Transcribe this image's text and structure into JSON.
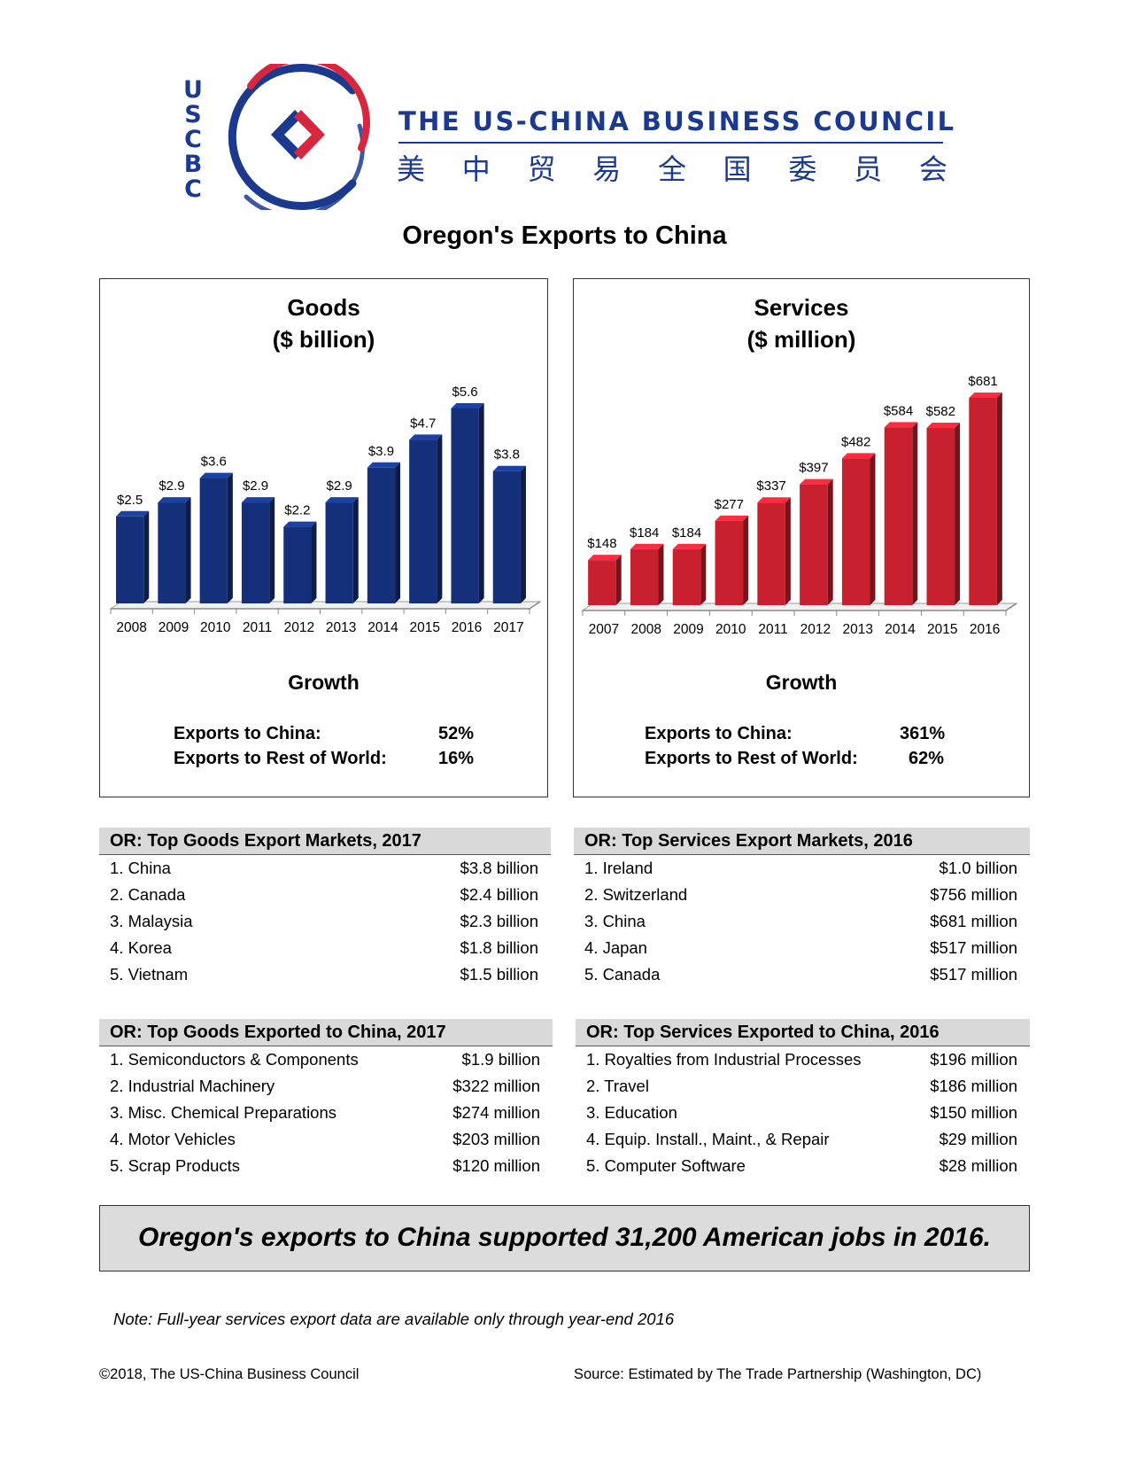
{
  "header": {
    "logo_letters": [
      "U",
      "S",
      "C",
      "B",
      "C"
    ],
    "council_name": "THE US-CHINA BUSINESS COUNCIL",
    "council_chinese": [
      "美",
      "中",
      "贸",
      "易",
      "全",
      "国",
      "委",
      "员",
      "会"
    ],
    "title": "Oregon's Exports to China"
  },
  "colors": {
    "goods_bar": "#14307a",
    "services_bar": "#c8202f",
    "brand_blue": "#1b3a8f",
    "brand_red": "#d7263d"
  },
  "goods_panel": {
    "title_line1": "Goods",
    "title_line2": "($ billion)",
    "growth_title": "Growth",
    "growth": [
      {
        "label": "Exports to China:",
        "value": "52%"
      },
      {
        "label": "Exports to Rest of World:",
        "value": "16%"
      }
    ]
  },
  "services_panel": {
    "title_line1": "Services",
    "title_line2": "($ million)",
    "growth_title": "Growth",
    "growth": [
      {
        "label": "Exports to China:",
        "value": "361%"
      },
      {
        "label": "Exports to Rest of World:",
        "value": "62%"
      }
    ]
  },
  "chart_data": [
    {
      "type": "bar",
      "title": "Goods ($ billion)",
      "categories": [
        "2008",
        "2009",
        "2010",
        "2011",
        "2012",
        "2013",
        "2014",
        "2015",
        "2016",
        "2017"
      ],
      "values": [
        2.5,
        2.9,
        3.6,
        2.9,
        2.2,
        2.9,
        3.9,
        4.7,
        5.6,
        3.8
      ],
      "data_labels": [
        "$2.5",
        "$2.9",
        "$3.6",
        "$2.9",
        "$2.2",
        "$2.9",
        "$3.9",
        "$4.7",
        "$5.6",
        "$3.8"
      ],
      "ylim": [
        0,
        5.6
      ],
      "grid": false,
      "color": "#14307a"
    },
    {
      "type": "bar",
      "title": "Services ($ million)",
      "categories": [
        "2007",
        "2008",
        "2009",
        "2010",
        "2011",
        "2012",
        "2013",
        "2014",
        "2015",
        "2016"
      ],
      "values": [
        148,
        184,
        184,
        277,
        337,
        397,
        482,
        584,
        582,
        681
      ],
      "data_labels": [
        "$148",
        "$184",
        "$184",
        "$277",
        "$337",
        "$397",
        "$482",
        "$584",
        "$582",
        "$681"
      ],
      "ylim": [
        0,
        681
      ],
      "grid": false,
      "color": "#c8202f"
    }
  ],
  "tables": {
    "goods_markets": {
      "title": "OR: Top Goods Export Markets, 2017",
      "rows": [
        {
          "name": "1. China",
          "value": "$3.8 billion"
        },
        {
          "name": "2. Canada",
          "value": "$2.4 billion"
        },
        {
          "name": "3. Malaysia",
          "value": "$2.3 billion"
        },
        {
          "name": "4. Korea",
          "value": "$1.8 billion"
        },
        {
          "name": "5. Vietnam",
          "value": "$1.5 billion"
        }
      ]
    },
    "services_markets": {
      "title": "OR: Top Services Export Markets, 2016",
      "rows": [
        {
          "name": "1. Ireland",
          "value": "$1.0 billion"
        },
        {
          "name": "2. Switzerland",
          "value": "$756 million"
        },
        {
          "name": "3. China",
          "value": "$681 million"
        },
        {
          "name": "4. Japan",
          "value": "$517 million"
        },
        {
          "name": "5. Canada",
          "value": "$517 million"
        }
      ]
    },
    "goods_to_china": {
      "title": "OR: Top Goods Exported to China, 2017",
      "rows": [
        {
          "name": "1. Semiconductors & Components",
          "value": "$1.9 billion"
        },
        {
          "name": "2. Industrial Machinery",
          "value": "$322 million"
        },
        {
          "name": "3. Misc. Chemical Preparations",
          "value": "$274 million"
        },
        {
          "name": "4. Motor Vehicles",
          "value": "$203 million"
        },
        {
          "name": "5. Scrap Products",
          "value": "$120 million"
        }
      ]
    },
    "services_to_china": {
      "title": "OR: Top Services Exported to China, 2016",
      "rows": [
        {
          "name": "1. Royalties from Industrial Processes",
          "value": "$196 million"
        },
        {
          "name": "2. Travel",
          "value": "$186 million"
        },
        {
          "name": "3. Education",
          "value": "$150 million"
        },
        {
          "name": "4. Equip. Install., Maint., & Repair",
          "value": "$29 million"
        },
        {
          "name": "5. Computer Software",
          "value": "$28 million"
        }
      ]
    }
  },
  "banner": "Oregon's exports to China supported 31,200 American jobs in 2016.",
  "note": "Note: Full-year services export data are available only through year-end 2016",
  "footer": {
    "copyright": "©2018, The US-China Business Council",
    "source": "Source: Estimated by The Trade Partnership (Washington, DC)"
  }
}
